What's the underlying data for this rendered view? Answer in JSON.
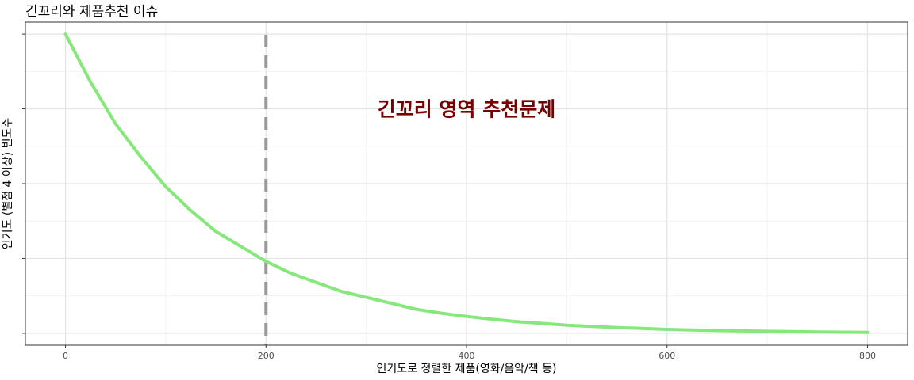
{
  "title": "긴꼬리와 제품추천 이슈",
  "chart_data": {
    "type": "line",
    "title": "긴꼬리와 제품추천 이슈",
    "xlabel": "인기도로 정렬한 제품(영화/음악/책 등)",
    "ylabel": "인기도 (별점 4 이상) 빈도수",
    "xlim": [
      -40,
      840
    ],
    "ylim": [
      -0.04,
      1.04
    ],
    "x_ticks": [
      0,
      200,
      400,
      600,
      800
    ],
    "x_tick_labels": [
      "0",
      "200",
      "400",
      "600",
      "800"
    ],
    "y_ticks": [
      0,
      0.25,
      0.5,
      0.75,
      1.0
    ],
    "y_tick_labels": [
      "",
      "",
      "",
      "",
      ""
    ],
    "grid": true,
    "series": [
      {
        "x": [
          0,
          25,
          50,
          75,
          100,
          125,
          150,
          175,
          200,
          225,
          250,
          275,
          300,
          325,
          350,
          375,
          400,
          425,
          450,
          475,
          500,
          525,
          550,
          575,
          600,
          625,
          650,
          675,
          700,
          725,
          750,
          775,
          800
        ],
        "y": [
          1.0,
          0.84,
          0.7,
          0.59,
          0.49,
          0.41,
          0.34,
          0.29,
          0.24,
          0.2,
          0.17,
          0.14,
          0.12,
          0.1,
          0.08,
          0.067,
          0.056,
          0.047,
          0.039,
          0.033,
          0.027,
          0.023,
          0.019,
          0.016,
          0.013,
          0.011,
          0.009,
          0.008,
          0.0066,
          0.0055,
          0.0046,
          0.0038,
          0.0032
        ],
        "color": "#86e87a"
      }
    ],
    "vline": {
      "x": 200,
      "color": "#999999",
      "style": "dashed"
    },
    "annotation": {
      "text": "긴꼬리 영역 추천문제",
      "x": 400,
      "y": 0.75,
      "color": "#7a0000"
    }
  }
}
